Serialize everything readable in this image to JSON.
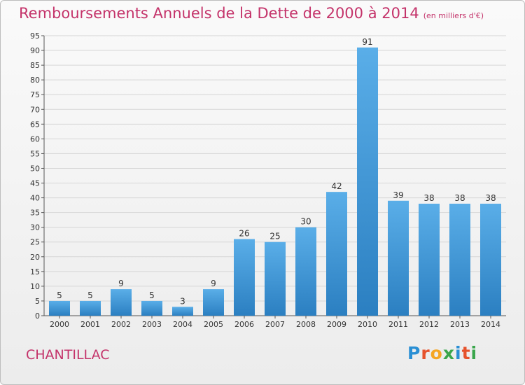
{
  "title": "Remboursements Annuels de la Dette de 2000 à 2014",
  "subtitle": "(en milliers d'€)",
  "city": "CHANTILLAC",
  "logo": {
    "letters": [
      "P",
      "r",
      "o",
      "x",
      "i",
      "t",
      "i"
    ],
    "colors": [
      "#2a8fd4",
      "#e6522c",
      "#f5a623",
      "#3aa64c",
      "#2a8fd4",
      "#e6522c",
      "#3aa64c"
    ]
  },
  "colors": {
    "bar_light": "#5aaee8",
    "bar_dark": "#2b7fc1",
    "accent": "#c4336a",
    "grid": "#d6d6d6"
  },
  "chart_data": {
    "type": "bar",
    "title": "Remboursements Annuels de la Dette de 2000 à 2014",
    "subtitle": "(en milliers d'€)",
    "categories": [
      "2000",
      "2001",
      "2002",
      "2003",
      "2004",
      "2005",
      "2006",
      "2007",
      "2008",
      "2009",
      "2010",
      "2011",
      "2012",
      "2013",
      "2014"
    ],
    "values": [
      5,
      5,
      9,
      5,
      3,
      9,
      26,
      25,
      30,
      42,
      91,
      39,
      38,
      38,
      38
    ],
    "ylim": [
      0,
      95
    ],
    "yticks": [
      0,
      5,
      10,
      15,
      20,
      25,
      30,
      35,
      40,
      45,
      50,
      55,
      60,
      65,
      70,
      75,
      80,
      85,
      90,
      95
    ],
    "grid": true,
    "data_labels": true
  }
}
